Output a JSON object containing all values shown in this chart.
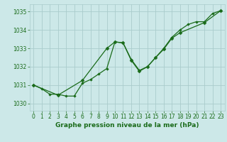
{
  "title": "Graphe pression niveau de la mer (hPa)",
  "bg_color": "#cce8e8",
  "grid_color": "#aacccc",
  "line_color": "#1a6b1a",
  "marker_color": "#1a6b1a",
  "ylim": [
    1029.6,
    1035.4
  ],
  "yticks": [
    1030,
    1031,
    1032,
    1033,
    1034,
    1035
  ],
  "xlim": [
    -0.5,
    23.5
  ],
  "xticks": [
    0,
    1,
    2,
    3,
    4,
    5,
    6,
    7,
    8,
    9,
    10,
    11,
    12,
    13,
    14,
    15,
    16,
    17,
    18,
    19,
    20,
    21,
    22,
    23
  ],
  "series1_x": [
    0,
    1,
    2,
    3,
    4,
    5,
    6,
    7,
    8,
    9,
    10,
    11,
    12,
    13,
    14,
    15,
    16,
    17,
    18,
    19,
    20,
    21,
    22,
    23
  ],
  "series1_y": [
    1031.0,
    1030.8,
    1030.5,
    1030.5,
    1030.4,
    1030.4,
    1031.1,
    1031.3,
    1031.6,
    1031.9,
    1033.35,
    1033.3,
    1032.4,
    1031.8,
    1032.0,
    1032.5,
    1033.0,
    1033.6,
    1034.0,
    1034.3,
    1034.45,
    1034.45,
    1034.9,
    1035.05
  ],
  "series2_x": [
    0,
    3,
    6,
    9,
    10,
    11,
    12,
    13,
    14,
    15,
    16,
    17,
    18,
    21,
    23
  ],
  "series2_y": [
    1031.0,
    1030.45,
    1031.25,
    1033.0,
    1033.35,
    1033.3,
    1032.35,
    1031.75,
    1032.0,
    1032.5,
    1032.95,
    1033.55,
    1033.85,
    1034.4,
    1035.05
  ],
  "xlabel_fontsize": 6.5,
  "tick_fontsize": 5.5
}
